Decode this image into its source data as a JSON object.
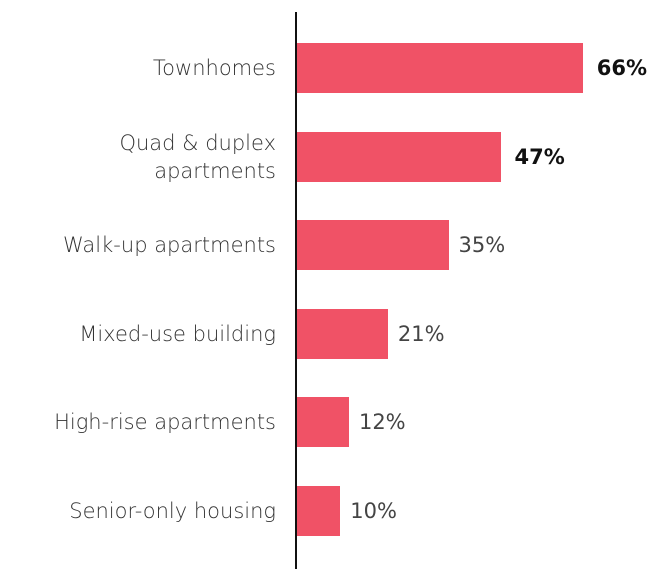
{
  "chart_data": {
    "type": "bar",
    "orientation": "horizontal",
    "categories": [
      "Townhomes",
      "Quad & duplex\napartments",
      "Walk-up apartments",
      "Mixed-use building",
      "High-rise apartments",
      "Senior-only housing"
    ],
    "values": [
      66,
      47,
      35,
      21,
      12,
      10
    ],
    "value_labels": [
      "66%",
      "47%",
      "35%",
      "21%",
      "12%",
      "10%"
    ],
    "bold_labels": [
      true,
      true,
      false,
      false,
      false,
      false
    ],
    "color": "#f05266"
  }
}
